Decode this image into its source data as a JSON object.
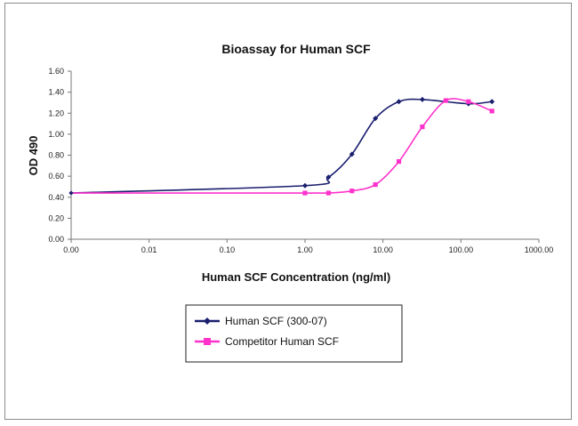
{
  "chart_data": {
    "type": "line",
    "title": "Bioassay for Human SCF",
    "xlabel": "Human SCF Concentration (ng/ml)",
    "ylabel": "OD 490",
    "x_scale": "log",
    "xlim": [
      0.001,
      1000
    ],
    "ylim": [
      0,
      1.6
    ],
    "x_tick_values": [
      0.001,
      0.01,
      0.1,
      1,
      10,
      100,
      1000
    ],
    "x_tick_labels": [
      "0.00",
      "0.01",
      "0.10",
      "1.00",
      "10.00",
      "100.00",
      "1000.00"
    ],
    "y_tick_values": [
      0,
      0.2,
      0.4,
      0.6,
      0.8,
      1.0,
      1.2,
      1.4,
      1.6
    ],
    "y_tick_labels": [
      "0.00",
      "0.20",
      "0.40",
      "0.60",
      "0.80",
      "1.00",
      "1.20",
      "1.40",
      "1.60"
    ],
    "grid": false,
    "legend_position": "bottom-center",
    "series": [
      {
        "name": "Human SCF (300-07)",
        "color": "#1a1f6e",
        "marker": "diamond",
        "x": [
          1.0,
          2.0,
          4.0,
          8.0,
          16.0,
          32.0,
          125.0,
          250.0
        ],
        "y": [
          0.51,
          0.59,
          0.81,
          1.15,
          1.31,
          1.33,
          1.29,
          1.31
        ]
      },
      {
        "name": "Competitor Human SCF",
        "color": "#ff33cc",
        "marker": "square",
        "x": [
          1.0,
          2.0,
          4.0,
          8.0,
          16.0,
          32.0,
          64.0,
          125.0,
          250.0
        ],
        "y": [
          0.44,
          0.44,
          0.46,
          0.52,
          0.74,
          1.07,
          1.32,
          1.31,
          1.22
        ]
      }
    ],
    "baseline_point": {
      "x": 0.001,
      "y": 0.44
    }
  }
}
